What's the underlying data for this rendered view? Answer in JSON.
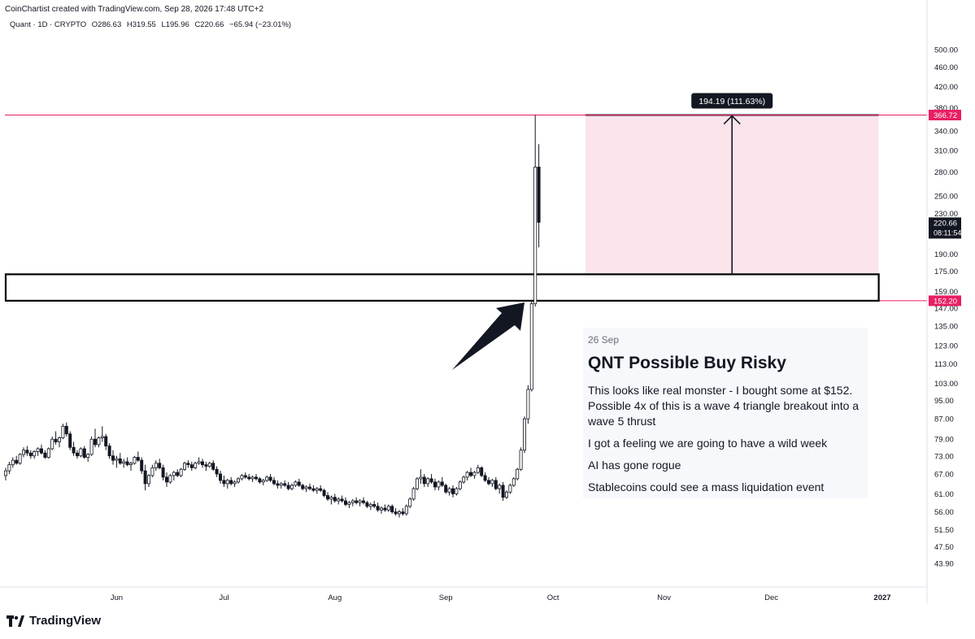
{
  "header": {
    "credit": "CoinChartist created with TradingView.com, Sep 28, 2026 17:48 UTC+2",
    "symbol": "Quant · 1D · CRYPTO",
    "open": "O286.63",
    "high": "H319.55",
    "low": "L195.96",
    "close": "C220.66",
    "change": "−65.94 (−23.01%)"
  },
  "note": {
    "date": "26 Sep",
    "title": "QNT Possible Buy Risky",
    "lines": [
      "This looks like real monster - I bought some at $152. Possible 4x of this is a wave 4 triangle breakout into a wave 5 thrust",
      "I got a feeling we are going to have a wild week",
      "AI has gone rogue",
      "Stablecoins could see a mass liquidation event"
    ]
  },
  "logo": {
    "text": "TradingView"
  },
  "chart_data": {
    "type": "candlestick",
    "y_scale": "log",
    "ylim": [
      40,
      540
    ],
    "x_tick_labels": [
      "Jun",
      "Jul",
      "Aug",
      "Sep",
      "Oct",
      "Nov",
      "Dec",
      "2027"
    ],
    "y_tick_labels": [
      "500.00",
      "460.00",
      "420.00",
      "380.00",
      "340.00",
      "310.00",
      "280.00",
      "250.00",
      "230.00",
      "190.00",
      "175.00",
      "159.00",
      "147.00",
      "135.00",
      "123.00",
      "113.00",
      "103.00",
      "95.00",
      "87.00",
      "79.00",
      "73.00",
      "67.00",
      "61.00",
      "56.00",
      "51.50",
      "47.50",
      "43.90"
    ],
    "price_tags": [
      {
        "label": "366.72",
        "value": 366.72,
        "color": "#e91e63"
      },
      {
        "label": "152.20",
        "value": 152.2,
        "color": "#e91e63"
      }
    ],
    "last_price": {
      "label": "220.66",
      "value": 220.66,
      "countdown": "08:11:54"
    },
    "measure_label": "194.19 (111.63%)",
    "target_zone": {
      "from": "2026-10-10",
      "to": "2026-12-31",
      "low": 172.5,
      "high": 366.72
    },
    "triangle_box": {
      "from": "2026-05-01",
      "to": "2026-12-31",
      "low": 152.2,
      "high": 172.5
    },
    "candles": [
      [
        "2026-05-01",
        66.5,
        69,
        65,
        68
      ],
      [
        "2026-05-02",
        68,
        71,
        67,
        70
      ],
      [
        "2026-05-03",
        70,
        72.5,
        69,
        71.5
      ],
      [
        "2026-05-04",
        71.5,
        73,
        70,
        70.5
      ],
      [
        "2026-05-05",
        70.5,
        74,
        70,
        73.5
      ],
      [
        "2026-05-06",
        73.5,
        76,
        72.5,
        75
      ],
      [
        "2026-05-07",
        75,
        76.5,
        73,
        74
      ],
      [
        "2026-05-08",
        74,
        75,
        72,
        73
      ],
      [
        "2026-05-09",
        73,
        75,
        72,
        74.5
      ],
      [
        "2026-05-10",
        74.5,
        76,
        73,
        75.5
      ],
      [
        "2026-05-11",
        75.5,
        77,
        73.5,
        74
      ],
      [
        "2026-05-12",
        74,
        75,
        72,
        72.5
      ],
      [
        "2026-05-13",
        72.5,
        76,
        72,
        75.5
      ],
      [
        "2026-05-14",
        75.5,
        80,
        75,
        79
      ],
      [
        "2026-05-15",
        79,
        82,
        77,
        78
      ],
      [
        "2026-05-16",
        78,
        80,
        76,
        79.5
      ],
      [
        "2026-05-17",
        79.5,
        85,
        79,
        84
      ],
      [
        "2026-05-18",
        84,
        85.5,
        80,
        81
      ],
      [
        "2026-05-19",
        81,
        82,
        75,
        76
      ],
      [
        "2026-05-20",
        76,
        78,
        73,
        74
      ],
      [
        "2026-05-21",
        74,
        75,
        72,
        73
      ],
      [
        "2026-05-22",
        73,
        76,
        72.5,
        75.5
      ],
      [
        "2026-05-23",
        75.5,
        76.5,
        72,
        72.5
      ],
      [
        "2026-05-24",
        72.5,
        74,
        71,
        73.5
      ],
      [
        "2026-05-25",
        73.5,
        80,
        73,
        79
      ],
      [
        "2026-05-26",
        79,
        83,
        76,
        77
      ],
      [
        "2026-05-27",
        77,
        80,
        76,
        79.5
      ],
      [
        "2026-05-28",
        79.5,
        84,
        78,
        80
      ],
      [
        "2026-05-29",
        80,
        81,
        75,
        76.5
      ],
      [
        "2026-05-30",
        76.5,
        77.5,
        72,
        73
      ],
      [
        "2026-05-31",
        73,
        75,
        70,
        71.5
      ],
      [
        "2026-06-01",
        71.5,
        73,
        69,
        72
      ],
      [
        "2026-06-02",
        72,
        74,
        70,
        70.5
      ],
      [
        "2026-06-03",
        70.5,
        72,
        69,
        71
      ],
      [
        "2026-06-04",
        71,
        72.5,
        69.5,
        70
      ],
      [
        "2026-06-05",
        70,
        71,
        68,
        70.5
      ],
      [
        "2026-06-06",
        70.5,
        73,
        70,
        72.5
      ],
      [
        "2026-06-07",
        72.5,
        74.5,
        71,
        71.5
      ],
      [
        "2026-06-08",
        71.5,
        72.5,
        67,
        68
      ],
      [
        "2026-06-09",
        68,
        70,
        62,
        64
      ],
      [
        "2026-06-10",
        64,
        67,
        63,
        66.5
      ],
      [
        "2026-06-11",
        66.5,
        70,
        66,
        69
      ],
      [
        "2026-06-12",
        69,
        71.5,
        68,
        70.5
      ],
      [
        "2026-06-13",
        70.5,
        72,
        68.5,
        69
      ],
      [
        "2026-06-14",
        69,
        70,
        65,
        66
      ],
      [
        "2026-06-15",
        66,
        67.5,
        63,
        64.5
      ],
      [
        "2026-06-16",
        64.5,
        67,
        64,
        66.5
      ],
      [
        "2026-06-17",
        66.5,
        68,
        65,
        67.5
      ],
      [
        "2026-06-18",
        67.5,
        68.5,
        66,
        66.5
      ],
      [
        "2026-06-19",
        66.5,
        69,
        66,
        68.5
      ],
      [
        "2026-06-20",
        68.5,
        71,
        68,
        70.5
      ],
      [
        "2026-06-21",
        70.5,
        71.5,
        69,
        70
      ],
      [
        "2026-06-22",
        70,
        71,
        68,
        69
      ],
      [
        "2026-06-23",
        69,
        71,
        68.5,
        70.5
      ],
      [
        "2026-06-24",
        70.5,
        72.5,
        70,
        71
      ],
      [
        "2026-06-25",
        71,
        72,
        69,
        70
      ],
      [
        "2026-06-26",
        70,
        71,
        68,
        69.5
      ],
      [
        "2026-06-27",
        69.5,
        71,
        69,
        70.5
      ],
      [
        "2026-06-28",
        70.5,
        71.5,
        68,
        68.5
      ],
      [
        "2026-06-29",
        68.5,
        69.5,
        66,
        67
      ],
      [
        "2026-06-30",
        67,
        68,
        64,
        65
      ],
      [
        "2026-07-01",
        65,
        66.5,
        63,
        64
      ],
      [
        "2026-07-02",
        64,
        65.5,
        62.5,
        65
      ],
      [
        "2026-07-03",
        65,
        66,
        63.5,
        64
      ],
      [
        "2026-07-04",
        64,
        65,
        63,
        64.5
      ],
      [
        "2026-07-05",
        64.5,
        66,
        64,
        65.5
      ],
      [
        "2026-07-06",
        65.5,
        67,
        65,
        66.5
      ],
      [
        "2026-07-07",
        66.5,
        67.5,
        65.5,
        66
      ],
      [
        "2026-07-08",
        66,
        67,
        65,
        65.5
      ],
      [
        "2026-07-09",
        65.5,
        66.5,
        64.5,
        66
      ],
      [
        "2026-07-10",
        66,
        67,
        65,
        65.5
      ],
      [
        "2026-07-11",
        65.5,
        66,
        64,
        64.5
      ],
      [
        "2026-07-12",
        64.5,
        65.5,
        63.5,
        65
      ],
      [
        "2026-07-13",
        65,
        66.5,
        64.5,
        66
      ],
      [
        "2026-07-14",
        66,
        67,
        64.5,
        65
      ],
      [
        "2026-07-15",
        65,
        66,
        63.5,
        64
      ],
      [
        "2026-07-16",
        64,
        65,
        62.5,
        63.5
      ],
      [
        "2026-07-17",
        63.5,
        64.5,
        62.5,
        64
      ],
      [
        "2026-07-18",
        64,
        65,
        63,
        63.5
      ],
      [
        "2026-07-19",
        63.5,
        64.5,
        62,
        62.5
      ],
      [
        "2026-07-20",
        62.5,
        64,
        62,
        63.5
      ],
      [
        "2026-07-21",
        63.5,
        65,
        63,
        64.5
      ],
      [
        "2026-07-22",
        64.5,
        65.5,
        63,
        63.5
      ],
      [
        "2026-07-23",
        63.5,
        64,
        62,
        62.5
      ],
      [
        "2026-07-24",
        62.5,
        63.5,
        61.5,
        63
      ],
      [
        "2026-07-25",
        63,
        64,
        62,
        62.5
      ],
      [
        "2026-07-26",
        62.5,
        63.5,
        61.5,
        62
      ],
      [
        "2026-07-27",
        62,
        63,
        61,
        62.5
      ],
      [
        "2026-07-28",
        62.5,
        63.5,
        61.5,
        62
      ],
      [
        "2026-07-29",
        62,
        62.5,
        60,
        60.5
      ],
      [
        "2026-07-30",
        60.5,
        61.5,
        59,
        59.5
      ],
      [
        "2026-07-31",
        59.5,
        60.5,
        58,
        60
      ],
      [
        "2026-08-01",
        60,
        61,
        58.5,
        59
      ],
      [
        "2026-08-02",
        59,
        60,
        58,
        59.5
      ],
      [
        "2026-08-03",
        59.5,
        60.5,
        58.5,
        59
      ],
      [
        "2026-08-04",
        59,
        60,
        57.5,
        58
      ],
      [
        "2026-08-05",
        58,
        59,
        57,
        58.5
      ],
      [
        "2026-08-06",
        58.5,
        59.5,
        57.5,
        59
      ],
      [
        "2026-08-07",
        59,
        60,
        58,
        58.5
      ],
      [
        "2026-08-08",
        58.5,
        59.5,
        57.5,
        59
      ],
      [
        "2026-08-09",
        59,
        60,
        58,
        58.5
      ],
      [
        "2026-08-10",
        58.5,
        59,
        57,
        57.5
      ],
      [
        "2026-08-11",
        57.5,
        58.5,
        56.5,
        58
      ],
      [
        "2026-08-12",
        58,
        59,
        57,
        57.5
      ],
      [
        "2026-08-13",
        57.5,
        58.5,
        56,
        56.5
      ],
      [
        "2026-08-14",
        56.5,
        57.5,
        55.5,
        57
      ],
      [
        "2026-08-15",
        57,
        58,
        56,
        56.5
      ],
      [
        "2026-08-16",
        56.5,
        58,
        56,
        57.5
      ],
      [
        "2026-08-17",
        57.5,
        58,
        55.5,
        56
      ],
      [
        "2026-08-18",
        56,
        57,
        55,
        55.5
      ],
      [
        "2026-08-19",
        55.5,
        56.5,
        54.5,
        56
      ],
      [
        "2026-08-20",
        56,
        57,
        55,
        55.5
      ],
      [
        "2026-08-21",
        55.5,
        58,
        55,
        57.5
      ],
      [
        "2026-08-22",
        57.5,
        60,
        57,
        59.5
      ],
      [
        "2026-08-23",
        59.5,
        63,
        59,
        62.5
      ],
      [
        "2026-08-24",
        62.5,
        66,
        62,
        65.5
      ],
      [
        "2026-08-25",
        65.5,
        68.5,
        64,
        66
      ],
      [
        "2026-08-26",
        66,
        67,
        63,
        64
      ],
      [
        "2026-08-27",
        64,
        66,
        63,
        65.5
      ],
      [
        "2026-08-28",
        65.5,
        67,
        64,
        64.5
      ],
      [
        "2026-08-29",
        64.5,
        65.5,
        62,
        63
      ],
      [
        "2026-08-30",
        63,
        65,
        62,
        64.5
      ],
      [
        "2026-08-31",
        64.5,
        66,
        63,
        63.5
      ],
      [
        "2026-09-01",
        63.5,
        64,
        61,
        61.5
      ],
      [
        "2026-09-02",
        61.5,
        63,
        60.5,
        62.5
      ],
      [
        "2026-09-03",
        62.5,
        63.5,
        60,
        61
      ],
      [
        "2026-09-04",
        61,
        63,
        60.5,
        62.5
      ],
      [
        "2026-09-05",
        62.5,
        65,
        62,
        64.5
      ],
      [
        "2026-09-06",
        64.5,
        66.5,
        64,
        66
      ],
      [
        "2026-09-07",
        66,
        68,
        65,
        67.5
      ],
      [
        "2026-09-08",
        67.5,
        69,
        66,
        66.5
      ],
      [
        "2026-09-09",
        66.5,
        68,
        65.5,
        67.5
      ],
      [
        "2026-09-10",
        67.5,
        70,
        67,
        69
      ],
      [
        "2026-09-11",
        69,
        69.5,
        66,
        66.5
      ],
      [
        "2026-09-12",
        66.5,
        67.5,
        64.5,
        65
      ],
      [
        "2026-09-13",
        65,
        66,
        63.5,
        64
      ],
      [
        "2026-09-14",
        64,
        65.5,
        63,
        65
      ],
      [
        "2026-09-15",
        65,
        66,
        62,
        62.5
      ],
      [
        "2026-09-16",
        62.5,
        64,
        61,
        63.5
      ],
      [
        "2026-09-17",
        63.5,
        64.5,
        59,
        60
      ],
      [
        "2026-09-18",
        60,
        62,
        59.5,
        61.5
      ],
      [
        "2026-09-19",
        61.5,
        64,
        61,
        63.5
      ],
      [
        "2026-09-20",
        63.5,
        66,
        63,
        65.5
      ],
      [
        "2026-09-21",
        65.5,
        69,
        65,
        68.5
      ],
      [
        "2026-09-22",
        68.5,
        76,
        68,
        75
      ],
      [
        "2026-09-23",
        75,
        88,
        74,
        87
      ],
      [
        "2026-09-24",
        87,
        102,
        85,
        100
      ],
      [
        "2026-09-25",
        100,
        152.2,
        99,
        150
      ],
      [
        "2026-09-26",
        150,
        366.72,
        148,
        286.63
      ],
      [
        "2026-09-27",
        286.63,
        319.55,
        195.96,
        220.66
      ]
    ]
  }
}
